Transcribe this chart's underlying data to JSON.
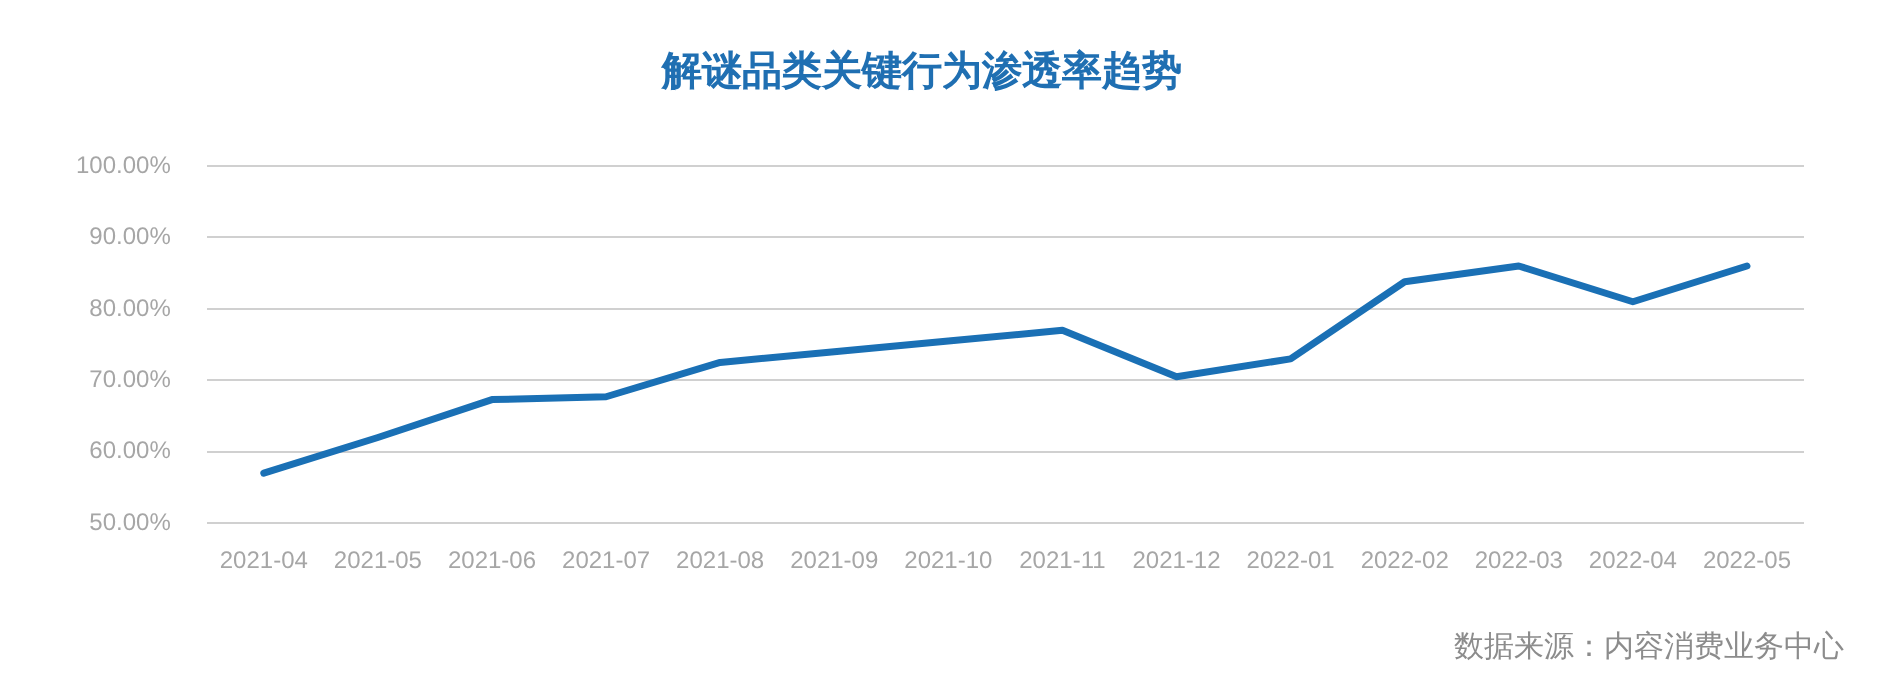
{
  "chart_data": {
    "type": "line",
    "title": "解谜品类关键行为渗透率趋势",
    "categories": [
      "2021-04",
      "2021-05",
      "2021-06",
      "2021-07",
      "2021-08",
      "2021-09",
      "2021-10",
      "2021-11",
      "2021-12",
      "2022-01",
      "2022-02",
      "2022-03",
      "2022-04",
      "2022-05"
    ],
    "series": [
      {
        "color": "#1a70b5",
        "values": [
          57,
          62,
          67.3,
          67.7,
          72.5,
          74,
          75.5,
          77,
          70.5,
          73,
          83.8,
          86,
          81,
          86
        ]
      }
    ],
    "ylim": [
      50,
      100
    ],
    "yticks": [
      {
        "value": 50,
        "label": "50.00%"
      },
      {
        "value": 60,
        "label": "60.00%"
      },
      {
        "value": 70,
        "label": "70.00%"
      },
      {
        "value": 80,
        "label": "80.00%"
      },
      {
        "value": 90,
        "label": "90.00%"
      },
      {
        "value": 100,
        "label": "100.00%"
      }
    ],
    "grid": "y",
    "legend": false,
    "marker": "none",
    "line_style": "solid",
    "annotations": [
      "数据来源：内容消费业务中心"
    ]
  }
}
